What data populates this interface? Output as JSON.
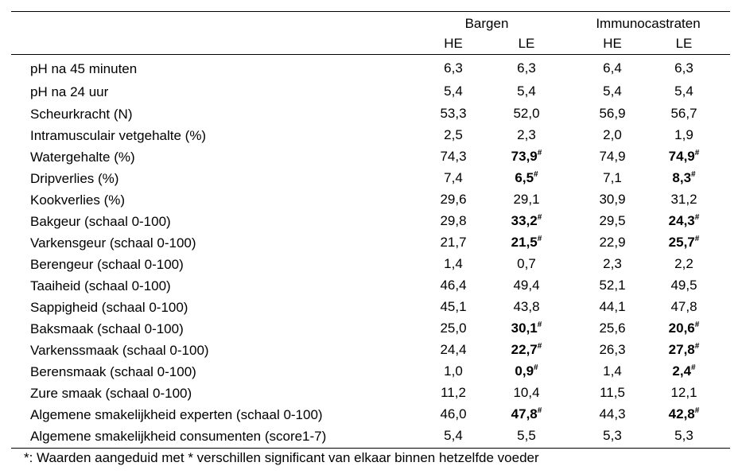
{
  "header": {
    "groups": [
      "Bargen",
      "Immunocastraten"
    ],
    "subcolumns": [
      "HE",
      "LE",
      "HE",
      "LE"
    ]
  },
  "rows": [
    {
      "label": "pH na 45 minuten",
      "values": [
        {
          "v": "6,3"
        },
        {
          "v": "6,3"
        },
        {
          "v": "6,4"
        },
        {
          "v": "6,3"
        }
      ]
    },
    {
      "label": "pH na 24 uur",
      "values": [
        {
          "v": "5,4"
        },
        {
          "v": "5,4"
        },
        {
          "v": "5,4"
        },
        {
          "v": "5,4"
        }
      ]
    },
    {
      "label": "Scheurkracht (N)",
      "values": [
        {
          "v": "53,3"
        },
        {
          "v": "52,0"
        },
        {
          "v": "56,9"
        },
        {
          "v": "56,7"
        }
      ]
    },
    {
      "label": "Intramusculair vetgehalte (%)",
      "values": [
        {
          "v": "2,5"
        },
        {
          "v": "2,3"
        },
        {
          "v": "2,0"
        },
        {
          "v": "1,9"
        }
      ]
    },
    {
      "label": "Watergehalte (%)",
      "values": [
        {
          "v": "74,3"
        },
        {
          "v": "73,9",
          "mark": "#"
        },
        {
          "v": "74,9"
        },
        {
          "v": "74,9",
          "mark": "#"
        }
      ]
    },
    {
      "label": "Dripverlies (%)",
      "values": [
        {
          "v": "7,4"
        },
        {
          "v": "6,5",
          "mark": "#"
        },
        {
          "v": "7,1"
        },
        {
          "v": "8,3",
          "mark": "#"
        }
      ]
    },
    {
      "label": "Kookverlies (%)",
      "values": [
        {
          "v": "29,6"
        },
        {
          "v": "29,1"
        },
        {
          "v": "30,9"
        },
        {
          "v": "31,2"
        }
      ]
    },
    {
      "label": "Bakgeur (schaal 0-100)",
      "values": [
        {
          "v": "29,8"
        },
        {
          "v": "33,2",
          "mark": "#"
        },
        {
          "v": "29,5"
        },
        {
          "v": "24,3",
          "mark": "#"
        }
      ]
    },
    {
      "label": "Varkensgeur (schaal 0-100)",
      "values": [
        {
          "v": "21,7"
        },
        {
          "v": "21,5",
          "mark": "#"
        },
        {
          "v": "22,9"
        },
        {
          "v": "25,7",
          "mark": "#"
        }
      ]
    },
    {
      "label": "Berengeur (schaal 0-100)",
      "values": [
        {
          "v": "1,4"
        },
        {
          "v": "0,7"
        },
        {
          "v": "2,3"
        },
        {
          "v": "2,2"
        }
      ]
    },
    {
      "label": "Taaiheid (schaal 0-100)",
      "values": [
        {
          "v": "46,4"
        },
        {
          "v": "49,4"
        },
        {
          "v": "52,1"
        },
        {
          "v": "49,5"
        }
      ]
    },
    {
      "label": "Sappigheid (schaal 0-100)",
      "values": [
        {
          "v": "45,1"
        },
        {
          "v": "43,8"
        },
        {
          "v": "44,1"
        },
        {
          "v": "47,8"
        }
      ]
    },
    {
      "label": "Baksmaak (schaal 0-100)",
      "values": [
        {
          "v": "25,0"
        },
        {
          "v": "30,1",
          "mark": "#"
        },
        {
          "v": "25,6"
        },
        {
          "v": "20,6",
          "mark": "#"
        }
      ]
    },
    {
      "label": "Varkenssmaak (schaal 0-100)",
      "values": [
        {
          "v": "24,4"
        },
        {
          "v": "22,7",
          "mark": "#"
        },
        {
          "v": "26,3"
        },
        {
          "v": "27,8",
          "mark": "#"
        }
      ]
    },
    {
      "label": "Berensmaak (schaal 0-100)",
      "values": [
        {
          "v": "1,0"
        },
        {
          "v": "0,9",
          "mark": "#"
        },
        {
          "v": "1,4"
        },
        {
          "v": "2,4",
          "mark": "#"
        }
      ]
    },
    {
      "label": "Zure smaak (schaal 0-100)",
      "values": [
        {
          "v": "11,2"
        },
        {
          "v": "10,4"
        },
        {
          "v": "11,5"
        },
        {
          "v": "12,1"
        }
      ]
    },
    {
      "label": "Algemene smakelijkheid experten (schaal 0-100)",
      "values": [
        {
          "v": "46,0"
        },
        {
          "v": "47,8",
          "mark": "#"
        },
        {
          "v": "44,3"
        },
        {
          "v": "42,8",
          "mark": "#"
        }
      ]
    },
    {
      "label": "Algemene smakelijkheid consumenten (score1-7)",
      "values": [
        {
          "v": "5,4"
        },
        {
          "v": "5,5"
        },
        {
          "v": "5,3"
        },
        {
          "v": "5,3"
        }
      ]
    }
  ],
  "footnote": "*: Waarden aangeduid met * verschillen significant van elkaar binnen hetzelfde voeder"
}
